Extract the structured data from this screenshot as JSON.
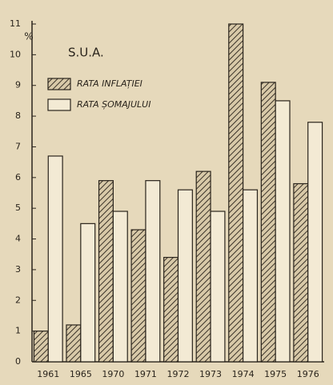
{
  "chart_data": {
    "type": "bar",
    "title": "S.U.A.",
    "y_label": "%",
    "categories": [
      "1961",
      "1965",
      "1970",
      "1971",
      "1972",
      "1973",
      "1974",
      "1975",
      "1976"
    ],
    "series": [
      {
        "name": "RATA INFLAȚIEI",
        "color": "#3a3228",
        "hatch": true,
        "values": [
          1.0,
          1.2,
          5.9,
          4.3,
          3.4,
          6.2,
          11.0,
          9.1,
          5.8
        ]
      },
      {
        "name": "RATA ȘOMAJULUI",
        "color": "#f3ead4",
        "hatch": false,
        "values": [
          6.7,
          4.5,
          4.9,
          5.9,
          5.6,
          4.9,
          5.6,
          8.5,
          7.8
        ]
      }
    ],
    "ylim": [
      0,
      11
    ],
    "yticks": [
      0,
      1,
      2,
      3,
      4,
      5,
      6,
      7,
      8,
      9,
      10,
      11
    ],
    "grid": false,
    "legend": "upper left"
  }
}
